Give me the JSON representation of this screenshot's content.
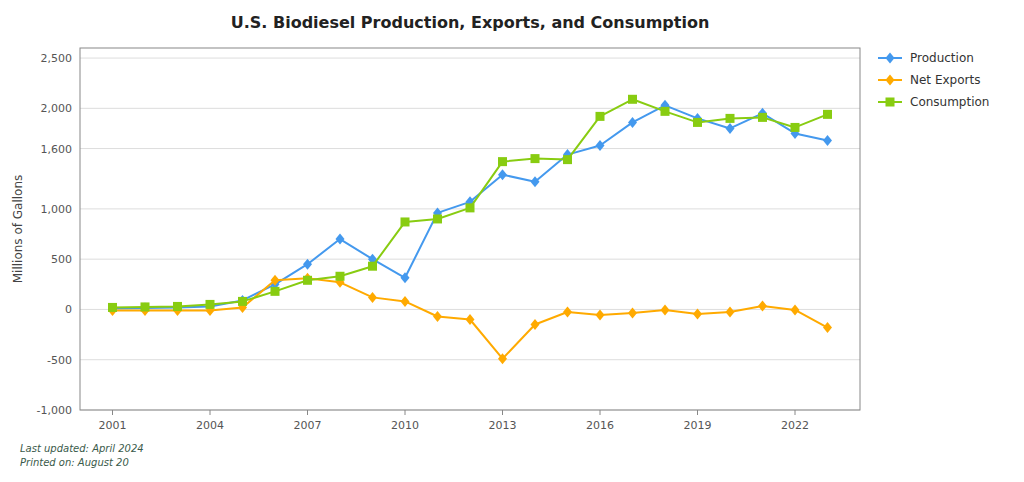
{
  "chart_data": {
    "type": "line",
    "title": "U.S. Biodiesel Production, Exports, and Consumption",
    "y_label": "Millions of Gallons",
    "annotations": [
      "Last updated: April 2024",
      "Printed on: August 20"
    ],
    "x": [
      2001,
      2002,
      2003,
      2004,
      2005,
      2006,
      2007,
      2008,
      2009,
      2010,
      2011,
      2012,
      2013,
      2014,
      2015,
      2016,
      2017,
      2018,
      2019,
      2020,
      2021,
      2022,
      2023
    ],
    "series": [
      {
        "name": "Production",
        "color": "#4499ee",
        "marker": "diamond",
        "values": [
          10,
          15,
          20,
          30,
          90,
          250,
          450,
          700,
          500,
          315,
          960,
          1070,
          1340,
          1270,
          1540,
          1630,
          1860,
          2030,
          1900,
          1800,
          1950,
          1750,
          1680
        ]
      },
      {
        "name": "Net Exports",
        "color": "#ffaa00",
        "marker": "diamond",
        "values": [
          -10,
          -10,
          -10,
          -10,
          20,
          290,
          310,
          270,
          120,
          80,
          -70,
          -100,
          -490,
          -150,
          -25,
          -55,
          -35,
          -5,
          -45,
          -25,
          35,
          -5,
          -180
        ]
      },
      {
        "name": "Consumption",
        "color": "#88cc11",
        "marker": "square",
        "values": [
          20,
          25,
          30,
          50,
          80,
          180,
          290,
          330,
          430,
          870,
          900,
          1010,
          1470,
          1500,
          1490,
          1920,
          2090,
          1970,
          1860,
          1900,
          1910,
          1810,
          1940
        ]
      }
    ],
    "xlim": [
      2000,
      2024
    ],
    "xticks": [
      2001,
      2004,
      2007,
      2010,
      2013,
      2016,
      2019,
      2022
    ],
    "ylim": [
      -1000,
      2600
    ],
    "yticks": [
      {
        "value": -1000,
        "label": "-1,000"
      },
      -500,
      0,
      500,
      {
        "value": 1000,
        "label": "1,000"
      },
      {
        "value": 1600,
        "label": "1,600"
      },
      {
        "value": 2000,
        "label": "2,000"
      },
      {
        "value": 2500,
        "label": "2,500"
      }
    ],
    "grid": true,
    "legend": "right"
  }
}
